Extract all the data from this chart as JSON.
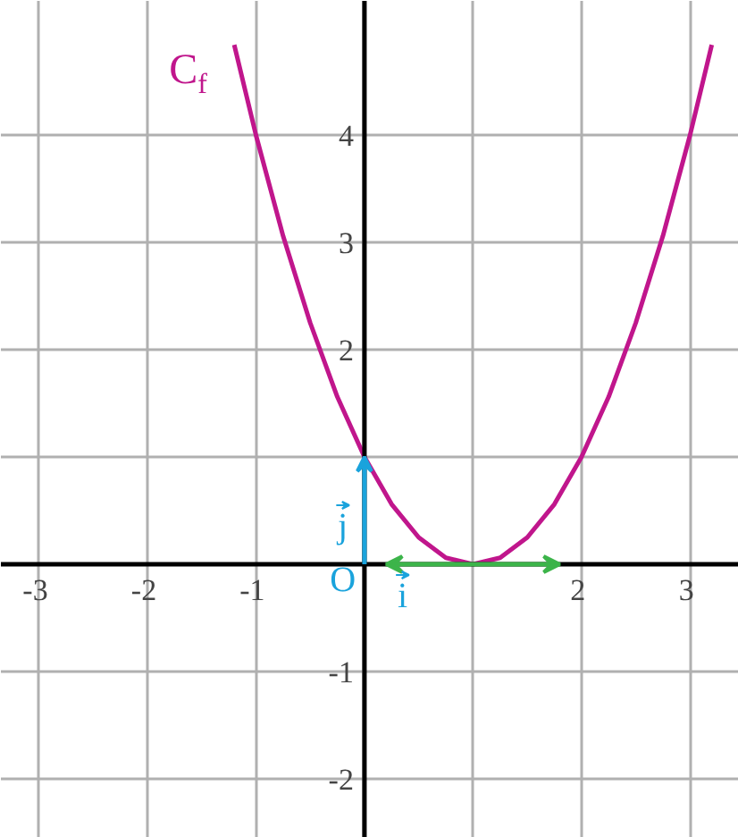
{
  "chart_data": {
    "type": "line",
    "xlim": [
      -3.35,
      3.45
    ],
    "ylim": [
      -2.55,
      5.25
    ],
    "xticks": [
      -3,
      -2,
      -1,
      {
        "value": 0,
        "label": null
      },
      {
        "value": 1,
        "label": null
      },
      2,
      3
    ],
    "yticks": [
      -2,
      -1,
      {
        "value": 0,
        "label": null
      },
      {
        "value": 1,
        "label": null
      },
      2,
      3,
      4
    ],
    "grid": true,
    "marker": "none",
    "line_style": "solid",
    "series": [
      {
        "color": "#c0168c",
        "x": [
          -1.2,
          -1,
          -0.75,
          -0.5,
          -0.25,
          0,
          0.25,
          0.5,
          0.75,
          1,
          1.25,
          1.5,
          1.75,
          2,
          2.25,
          2.5,
          2.75,
          3,
          3.2
        ],
        "values": [
          4.84,
          4,
          3.06,
          2.25,
          1.56,
          1,
          0.56,
          0.25,
          0.06,
          0,
          0.06,
          0.25,
          0.56,
          1,
          1.56,
          2.25,
          3.06,
          4,
          4.84
        ]
      }
    ],
    "annotations": [
      "C$_{f}$",
      "O",
      "i",
      {
        "text": "j",
        "x": 0,
        "y": 1
      }
    ]
  }
}
